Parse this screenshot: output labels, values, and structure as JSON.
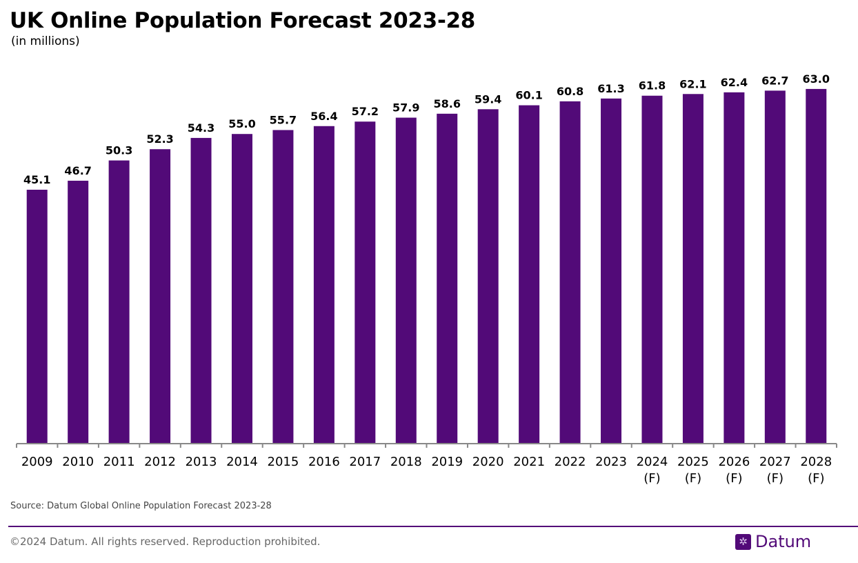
{
  "chart_data": {
    "type": "bar",
    "title": "UK Online Population Forecast 2023-28",
    "subtitle": "(in millions)",
    "categories": [
      "2009",
      "2010",
      "2011",
      "2012",
      "2013",
      "2014",
      "2015",
      "2016",
      "2017",
      "2018",
      "2019",
      "2020",
      "2021",
      "2022",
      "2023",
      "2024\n(F)",
      "2025\n(F)",
      "2026\n(F)",
      "2027\n(F)",
      "2028\n(F)"
    ],
    "values": [
      45.1,
      46.7,
      50.3,
      52.3,
      54.3,
      55.0,
      55.7,
      56.4,
      57.2,
      57.9,
      58.6,
      59.4,
      60.1,
      60.8,
      61.3,
      61.8,
      62.1,
      62.4,
      62.7,
      63.0
    ],
    "value_labels": [
      "45.1",
      "46.7",
      "50.3",
      "52.3",
      "54.3",
      "55.0",
      "55.7",
      "56.4",
      "57.2",
      "57.9",
      "58.6",
      "59.4",
      "60.1",
      "60.8",
      "61.3",
      "61.8",
      "62.1",
      "62.4",
      "62.7",
      "63.0"
    ],
    "ylim": [
      0,
      70
    ],
    "grid": false,
    "bar_color": "#520a78",
    "xlabel": "",
    "ylabel": ""
  },
  "source": "Source: Datum Global Online Population Forecast 2023-28",
  "footer": {
    "copyright": "©2024 Datum. All rights reserved. Reproduction prohibited.",
    "logo_text": "Datum"
  }
}
